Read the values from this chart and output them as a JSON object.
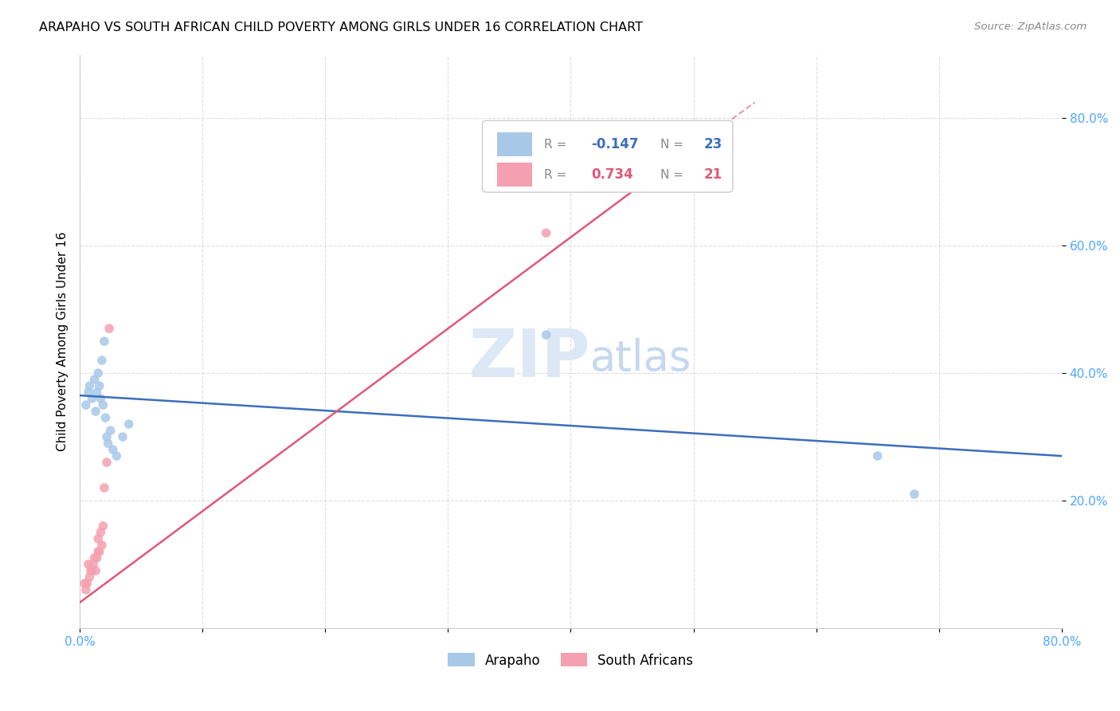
{
  "title": "ARAPAHO VS SOUTH AFRICAN CHILD POVERTY AMONG GIRLS UNDER 16 CORRELATION CHART",
  "source": "Source: ZipAtlas.com",
  "ylabel": "Child Poverty Among Girls Under 16",
  "xlim": [
    0.0,
    0.8
  ],
  "ylim": [
    0.0,
    0.9
  ],
  "arapaho_color": "#a8c8e8",
  "south_african_color": "#f5a0b0",
  "arapaho_line_color": "#3b6fba",
  "south_african_line_color": "#e05878",
  "watermark_zip": "ZIP",
  "watermark_atlas": "atlas",
  "arapaho_points_x": [
    0.005,
    0.007,
    0.008,
    0.01,
    0.012,
    0.013,
    0.014,
    0.015,
    0.016,
    0.017,
    0.018,
    0.019,
    0.02,
    0.021,
    0.022,
    0.023,
    0.025,
    0.027,
    0.03,
    0.035,
    0.04,
    0.38,
    0.65,
    0.68
  ],
  "arapaho_points_y": [
    0.35,
    0.37,
    0.38,
    0.36,
    0.39,
    0.34,
    0.37,
    0.4,
    0.38,
    0.36,
    0.42,
    0.35,
    0.45,
    0.33,
    0.3,
    0.29,
    0.31,
    0.28,
    0.27,
    0.3,
    0.32,
    0.46,
    0.27,
    0.21
  ],
  "south_african_points_x": [
    0.004,
    0.005,
    0.006,
    0.007,
    0.008,
    0.009,
    0.01,
    0.011,
    0.012,
    0.013,
    0.014,
    0.015,
    0.015,
    0.016,
    0.017,
    0.018,
    0.019,
    0.02,
    0.022,
    0.024,
    0.38
  ],
  "south_african_points_y": [
    0.07,
    0.06,
    0.07,
    0.1,
    0.08,
    0.09,
    0.09,
    0.1,
    0.11,
    0.09,
    0.11,
    0.12,
    0.14,
    0.12,
    0.15,
    0.13,
    0.16,
    0.22,
    0.26,
    0.47,
    0.62
  ],
  "arapaho_line_x0": 0.0,
  "arapaho_line_y0": 0.365,
  "arapaho_line_x1": 0.8,
  "arapaho_line_y1": 0.27,
  "sa_line_x0": 0.0,
  "sa_line_y0": 0.04,
  "sa_line_x1": 0.45,
  "sa_line_y1": 0.685,
  "sa_line_dash_x0": 0.45,
  "sa_line_dash_y0": 0.685,
  "sa_line_dash_x1": 0.55,
  "sa_line_dash_y1": 0.825,
  "scatter_size": 70
}
